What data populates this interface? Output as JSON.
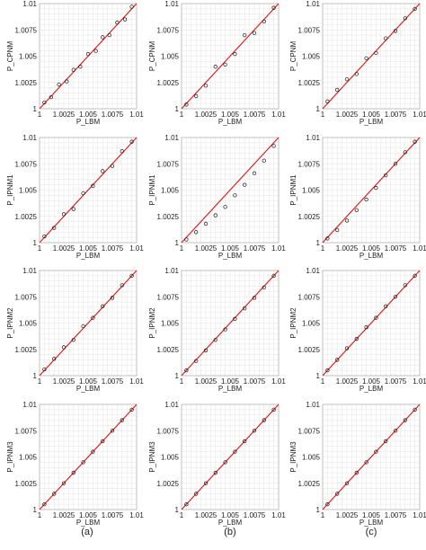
{
  "figure": {
    "column_labels": [
      "(a)",
      "(b)",
      "(c)"
    ]
  },
  "chart_data": [
    {
      "type": "scatter",
      "panel": "a1",
      "xlabel": "P_LBM",
      "ylabel": "P_CPNM",
      "xlim": [
        1,
        1.01
      ],
      "ylim": [
        1,
        1.01
      ],
      "xticks": [
        "1",
        "1.0025",
        "1.005",
        "1.0075",
        "1.01"
      ],
      "yticks": [
        "1",
        "1.0025",
        "1.005",
        "1.0075",
        "1.01"
      ],
      "reference_line": "y = x",
      "grid": true,
      "points": [
        [
          1.0005,
          1.0006
        ],
        [
          1.0012,
          1.0011
        ],
        [
          1.002,
          1.0023
        ],
        [
          1.0028,
          1.0026
        ],
        [
          1.0035,
          1.0037
        ],
        [
          1.0042,
          1.004
        ],
        [
          1.005,
          1.0052
        ],
        [
          1.0058,
          1.0055
        ],
        [
          1.0065,
          1.0068
        ],
        [
          1.0072,
          1.007
        ],
        [
          1.008,
          1.0082
        ],
        [
          1.0088,
          1.0085
        ],
        [
          1.0095,
          1.0097
        ]
      ]
    },
    {
      "type": "scatter",
      "panel": "b1",
      "xlabel": "P_LBM",
      "ylabel": "P_CPNM",
      "xlim": [
        1,
        1.01
      ],
      "ylim": [
        1,
        1.01
      ],
      "xticks": [
        "1",
        "1.0025",
        "1.005",
        "1.0075",
        "1.01"
      ],
      "yticks": [
        "1",
        "1.0025",
        "1.005",
        "1.0075",
        "1.01"
      ],
      "reference_line": "y = x",
      "grid": true,
      "points": [
        [
          1.0005,
          1.0004
        ],
        [
          1.0015,
          1.0012
        ],
        [
          1.0025,
          1.0022
        ],
        [
          1.0035,
          1.004
        ],
        [
          1.0045,
          1.0042
        ],
        [
          1.0055,
          1.0052
        ],
        [
          1.0065,
          1.007
        ],
        [
          1.0075,
          1.0072
        ],
        [
          1.0085,
          1.0083
        ],
        [
          1.0095,
          1.0096
        ]
      ]
    },
    {
      "type": "scatter",
      "panel": "c1",
      "xlabel": "P_LBM",
      "ylabel": "P_CPNM",
      "xlim": [
        1,
        1.01
      ],
      "ylim": [
        1,
        1.01
      ],
      "xticks": [
        "1",
        "1.0025",
        "1.005",
        "1.0075",
        "1.01"
      ],
      "yticks": [
        "1",
        "1.0025",
        "1.005",
        "1.0075",
        "1.01"
      ],
      "reference_line": "y = x",
      "grid": true,
      "points": [
        [
          1.0005,
          1.0007
        ],
        [
          1.0015,
          1.0018
        ],
        [
          1.0025,
          1.0028
        ],
        [
          1.0035,
          1.0033
        ],
        [
          1.0045,
          1.0048
        ],
        [
          1.0055,
          1.0053
        ],
        [
          1.0065,
          1.0067
        ],
        [
          1.0075,
          1.0074
        ],
        [
          1.0085,
          1.0086
        ],
        [
          1.0095,
          1.0095
        ]
      ]
    },
    {
      "type": "scatter",
      "panel": "a2",
      "xlabel": "P_LBM",
      "ylabel": "P_IPNM1",
      "xlim": [
        1,
        1.01
      ],
      "ylim": [
        1,
        1.01
      ],
      "xticks": [
        "1",
        "1.0025",
        "1.005",
        "1.0075",
        "1.01"
      ],
      "yticks": [
        "1",
        "1.0025",
        "1.005",
        "1.0075",
        "1.01"
      ],
      "reference_line": "y = x",
      "grid": true,
      "points": [
        [
          1.0005,
          1.0006
        ],
        [
          1.0015,
          1.0014
        ],
        [
          1.0025,
          1.0027
        ],
        [
          1.0035,
          1.0032
        ],
        [
          1.0045,
          1.0047
        ],
        [
          1.0055,
          1.0054
        ],
        [
          1.0065,
          1.0068
        ],
        [
          1.0075,
          1.0073
        ],
        [
          1.0085,
          1.0087
        ],
        [
          1.0095,
          1.0096
        ]
      ]
    },
    {
      "type": "scatter",
      "panel": "b2",
      "xlabel": "P_LBM",
      "ylabel": "P_IPNM1",
      "xlim": [
        1,
        1.01
      ],
      "ylim": [
        1,
        1.01
      ],
      "xticks": [
        "1",
        "1.0025",
        "1.005",
        "1.0075",
        "1.01"
      ],
      "yticks": [
        "1",
        "1.0025",
        "1.005",
        "1.0075",
        "1.01"
      ],
      "reference_line": "y = x",
      "grid": true,
      "points": [
        [
          1.0005,
          1.0003
        ],
        [
          1.0015,
          1.001
        ],
        [
          1.0025,
          1.0018
        ],
        [
          1.0035,
          1.0026
        ],
        [
          1.0045,
          1.0034
        ],
        [
          1.0055,
          1.0045
        ],
        [
          1.0065,
          1.0055
        ],
        [
          1.0075,
          1.0066
        ],
        [
          1.0085,
          1.0078
        ],
        [
          1.0095,
          1.0092
        ]
      ]
    },
    {
      "type": "scatter",
      "panel": "c2",
      "xlabel": "P_LBM",
      "ylabel": "P_IPNM1",
      "xlim": [
        1,
        1.01
      ],
      "ylim": [
        1,
        1.01
      ],
      "xticks": [
        "1",
        "1.0025",
        "1.005",
        "1.0075",
        "1.01"
      ],
      "yticks": [
        "1",
        "1.0025",
        "1.005",
        "1.0075",
        "1.01"
      ],
      "reference_line": "y = x",
      "grid": true,
      "points": [
        [
          1.0005,
          1.0004
        ],
        [
          1.0015,
          1.0012
        ],
        [
          1.0025,
          1.0021
        ],
        [
          1.0035,
          1.0031
        ],
        [
          1.0045,
          1.0041
        ],
        [
          1.0055,
          1.0052
        ],
        [
          1.0065,
          1.0064
        ],
        [
          1.0075,
          1.0075
        ],
        [
          1.0085,
          1.0086
        ],
        [
          1.0095,
          1.0096
        ]
      ]
    },
    {
      "type": "scatter",
      "panel": "a3",
      "xlabel": "P_LBM",
      "ylabel": "P_IPNM2",
      "xlim": [
        1,
        1.01
      ],
      "ylim": [
        1,
        1.01
      ],
      "xticks": [
        "1",
        "1.0025",
        "1.005",
        "1.0075",
        "1.01"
      ],
      "yticks": [
        "1",
        "1.0025",
        "1.005",
        "1.0075",
        "1.01"
      ],
      "reference_line": "y = x",
      "grid": true,
      "points": [
        [
          1.0005,
          1.0006
        ],
        [
          1.0015,
          1.0016
        ],
        [
          1.0025,
          1.0027
        ],
        [
          1.0035,
          1.0034
        ],
        [
          1.0045,
          1.0047
        ],
        [
          1.0055,
          1.0055
        ],
        [
          1.0065,
          1.0066
        ],
        [
          1.0075,
          1.0074
        ],
        [
          1.0085,
          1.0086
        ],
        [
          1.0095,
          1.0095
        ]
      ]
    },
    {
      "type": "scatter",
      "panel": "b3",
      "xlabel": "P_LBM",
      "ylabel": "P_IPNM2",
      "xlim": [
        1,
        1.01
      ],
      "ylim": [
        1,
        1.01
      ],
      "xticks": [
        "1",
        "1.0025",
        "1.005",
        "1.0075",
        "1.01"
      ],
      "yticks": [
        "1",
        "1.0025",
        "1.005",
        "1.0075",
        "1.01"
      ],
      "reference_line": "y = x",
      "grid": true,
      "points": [
        [
          1.0005,
          1.0005
        ],
        [
          1.0015,
          1.0014
        ],
        [
          1.0025,
          1.0024
        ],
        [
          1.0035,
          1.0034
        ],
        [
          1.0045,
          1.0044
        ],
        [
          1.0055,
          1.0054
        ],
        [
          1.0065,
          1.0064
        ],
        [
          1.0075,
          1.0074
        ],
        [
          1.0085,
          1.0084
        ],
        [
          1.0095,
          1.0095
        ]
      ]
    },
    {
      "type": "scatter",
      "panel": "c3",
      "xlabel": "P_LBM",
      "ylabel": "P_IPNM2",
      "xlim": [
        1,
        1.01
      ],
      "ylim": [
        1,
        1.01
      ],
      "xticks": [
        "1",
        "1.0025",
        "1.005",
        "1.0075",
        "1.01"
      ],
      "yticks": [
        "1",
        "1.0025",
        "1.005",
        "1.0075",
        "1.01"
      ],
      "reference_line": "y = x",
      "grid": true,
      "points": [
        [
          1.0005,
          1.0005
        ],
        [
          1.0015,
          1.0015
        ],
        [
          1.0025,
          1.0026
        ],
        [
          1.0035,
          1.0035
        ],
        [
          1.0045,
          1.0046
        ],
        [
          1.0055,
          1.0055
        ],
        [
          1.0065,
          1.0066
        ],
        [
          1.0075,
          1.0075
        ],
        [
          1.0085,
          1.0086
        ],
        [
          1.0095,
          1.0095
        ]
      ]
    },
    {
      "type": "scatter",
      "panel": "a4",
      "xlabel": "P_LBM",
      "ylabel": "P_IPNM3",
      "xlim": [
        1,
        1.01
      ],
      "ylim": [
        1,
        1.01
      ],
      "xticks": [
        "1",
        "1.0025",
        "1.005",
        "1.0075",
        "1.01"
      ],
      "yticks": [
        "1",
        "1.0025",
        "1.005",
        "1.0075",
        "1.01"
      ],
      "reference_line": "y = x",
      "grid": true,
      "points": [
        [
          1.0005,
          1.0005
        ],
        [
          1.0015,
          1.0015
        ],
        [
          1.0025,
          1.0025
        ],
        [
          1.0035,
          1.0035
        ],
        [
          1.0045,
          1.0045
        ],
        [
          1.0055,
          1.0055
        ],
        [
          1.0065,
          1.0065
        ],
        [
          1.0075,
          1.0075
        ],
        [
          1.0085,
          1.0085
        ],
        [
          1.0095,
          1.0095
        ]
      ]
    },
    {
      "type": "scatter",
      "panel": "b4",
      "xlabel": "P_LBM",
      "ylabel": "P_IPNM3",
      "xlim": [
        1,
        1.01
      ],
      "ylim": [
        1,
        1.01
      ],
      "xticks": [
        "1",
        "1.0025",
        "1.005",
        "1.0075",
        "1.01"
      ],
      "yticks": [
        "1",
        "1.0025",
        "1.005",
        "1.0075",
        "1.01"
      ],
      "reference_line": "y = x",
      "grid": true,
      "points": [
        [
          1.0005,
          1.0005
        ],
        [
          1.0015,
          1.0015
        ],
        [
          1.0025,
          1.0025
        ],
        [
          1.0035,
          1.0035
        ],
        [
          1.0045,
          1.0045
        ],
        [
          1.0055,
          1.0055
        ],
        [
          1.0065,
          1.0065
        ],
        [
          1.0075,
          1.0075
        ],
        [
          1.0085,
          1.0085
        ],
        [
          1.0095,
          1.0095
        ]
      ]
    },
    {
      "type": "scatter",
      "panel": "c4",
      "xlabel": "P_LBM",
      "ylabel": "P_IPNM3",
      "xlim": [
        1,
        1.01
      ],
      "ylim": [
        1,
        1.01
      ],
      "xticks": [
        "1",
        "1.0025",
        "1.005",
        "1.0075",
        "1.01"
      ],
      "yticks": [
        "1",
        "1.0025",
        "1.005",
        "1.0075",
        "1.01"
      ],
      "reference_line": "y = x",
      "grid": true,
      "points": [
        [
          1.0005,
          1.0005
        ],
        [
          1.0015,
          1.0015
        ],
        [
          1.0025,
          1.0025
        ],
        [
          1.0035,
          1.0035
        ],
        [
          1.0045,
          1.0045
        ],
        [
          1.0055,
          1.0055
        ],
        [
          1.0065,
          1.0065
        ],
        [
          1.0075,
          1.0075
        ],
        [
          1.0085,
          1.0085
        ],
        [
          1.0095,
          1.0095
        ]
      ]
    }
  ]
}
